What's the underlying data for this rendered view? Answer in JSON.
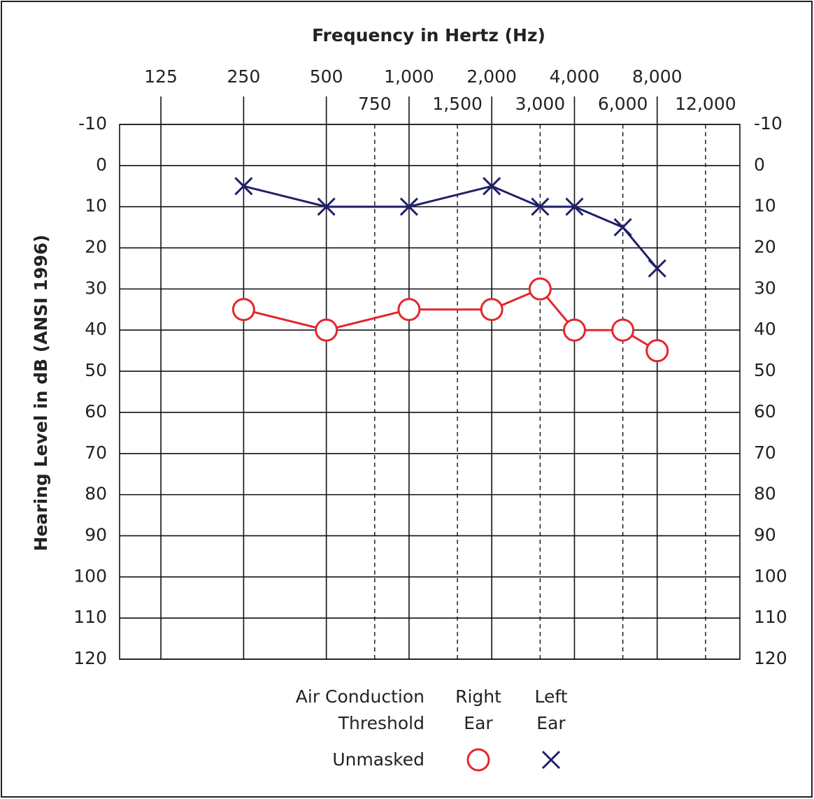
{
  "chart_data": {
    "type": "line",
    "title": "Frequency in Hertz (Hz)",
    "y_label": "Hearing Level in dB (ANSI 1996)",
    "log_x": true,
    "xlim": [
      88.4,
      16000
    ],
    "xticks": [
      125,
      250,
      500,
      {
        "value": 1000,
        "label": "1,000"
      },
      {
        "value": 2000,
        "label": "2,000"
      },
      {
        "value": 4000,
        "label": "4,000"
      },
      {
        "value": 8000,
        "label": "8,000"
      }
    ],
    "xticks_minor": [
      750,
      {
        "value": 1500,
        "label": "1,500"
      },
      {
        "value": 3000,
        "label": "3,000"
      },
      {
        "value": 6000,
        "label": "6,000"
      },
      {
        "value": 12000,
        "label": "12,000"
      }
    ],
    "ylim": [
      -10,
      120
    ],
    "y_inverted": true,
    "yticks": [
      -10,
      0,
      10,
      20,
      30,
      40,
      50,
      60,
      70,
      80,
      90,
      100,
      110,
      120
    ],
    "grid": true,
    "series": [
      {
        "name": "Right Ear",
        "color": "#e3262b",
        "marker": "o",
        "x": [
          250,
          500,
          1000,
          2000,
          3000,
          4000,
          6000,
          8000
        ],
        "values": [
          35,
          40,
          35,
          35,
          30,
          40,
          40,
          45
        ]
      },
      {
        "name": "Left Ear",
        "color": "#1f1f6b",
        "marker": "x",
        "x": [
          250,
          500,
          1000,
          2000,
          3000,
          4000,
          6000,
          8000
        ],
        "values": [
          5,
          10,
          10,
          5,
          10,
          10,
          15,
          25
        ]
      }
    ],
    "legend": {
      "title": "Air Conduction Threshold",
      "row_label": "Unmasked"
    }
  }
}
